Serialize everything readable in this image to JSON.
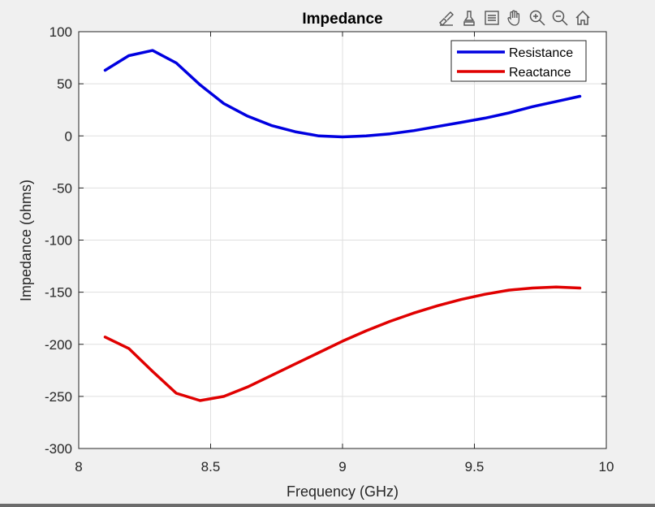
{
  "toolbar": {
    "icons": [
      "brush-icon",
      "data-tips-icon",
      "legend-icon",
      "pan-icon",
      "zoom-in-icon",
      "zoom-out-icon",
      "home-icon"
    ]
  },
  "chart_data": {
    "type": "line",
    "title": "Impedance",
    "xlabel": "Frequency (GHz)",
    "ylabel": "Impedance (ohms)",
    "xlim": [
      8,
      10
    ],
    "ylim": [
      -300,
      100
    ],
    "xticks": [
      8,
      8.5,
      9,
      9.5,
      10
    ],
    "xtick_labels": [
      "8",
      "8.5",
      "9",
      "9.5",
      "10"
    ],
    "yticks": [
      100,
      50,
      0,
      -50,
      -100,
      -150,
      -200,
      -250,
      -300
    ],
    "ytick_labels": [
      "100",
      "50",
      "0",
      "-50",
      "-100",
      "-150",
      "-200",
      "-250",
      "-300"
    ],
    "grid": true,
    "legend_position": "top-right",
    "x": [
      8.1,
      8.19,
      8.28,
      8.37,
      8.46,
      8.55,
      8.64,
      8.73,
      8.82,
      8.91,
      9.0,
      9.09,
      9.18,
      9.27,
      9.36,
      9.45,
      9.54,
      9.63,
      9.72,
      9.81,
      9.9
    ],
    "series": [
      {
        "name": "Resistance",
        "color": "#0000e0",
        "values": [
          63,
          77,
          82,
          70,
          49,
          31,
          19,
          10,
          4,
          0,
          -1,
          0,
          2,
          5,
          9,
          13,
          17,
          22,
          28,
          33,
          38
        ]
      },
      {
        "name": "Reactance",
        "color": "#e00000",
        "values": [
          -193,
          -204,
          -226,
          -247,
          -254,
          -250,
          -241,
          -230,
          -219,
          -208,
          -197,
          -187,
          -178,
          -170,
          -163,
          -157,
          -152,
          -148,
          -146,
          -145,
          -146
        ]
      }
    ]
  }
}
